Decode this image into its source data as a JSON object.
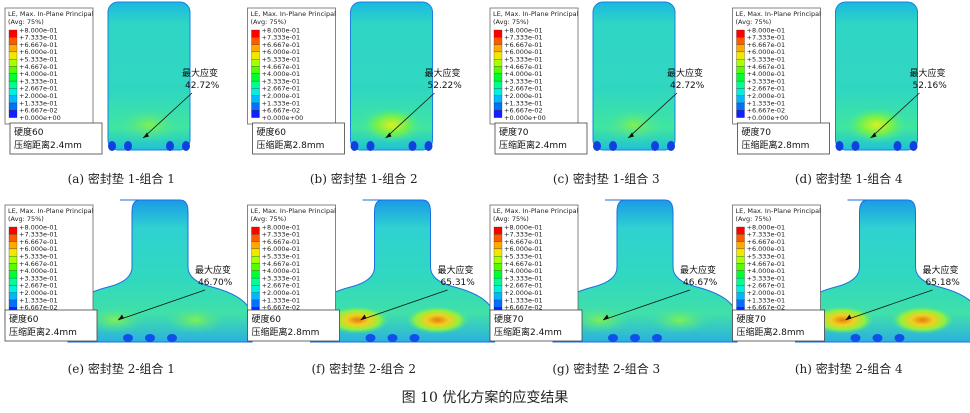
{
  "legend": {
    "title": "LE, Max. In-Plane Principal",
    "subtitle": "(Avg: 75%)",
    "values": [
      "+8.000e-01",
      "+7.333e-01",
      "+6.667e-01",
      "+6.000e-01",
      "+5.333e-01",
      "+4.667e-01",
      "+4.000e-01",
      "+3.333e-01",
      "+2.667e-01",
      "+2.000e-01",
      "+1.333e-01",
      "+6.667e-02",
      "+0.000e+00"
    ]
  },
  "panels": [
    {
      "caption": "(a)  密封垫 1-组合 1",
      "hardness": "硬度60",
      "distance": "压缩距离2.4mm",
      "max_label": "最大应变",
      "max_value": "42.72%"
    },
    {
      "caption": "(b)  密封垫 1-组合 2",
      "hardness": "硬度60",
      "distance": "压缩距离2.8mm",
      "max_label": "最大应变",
      "max_value": "52.22%"
    },
    {
      "caption": "(c)  密封垫 1-组合 3",
      "hardness": "硬度70",
      "distance": "压缩距离2.4mm",
      "max_label": "最大应变",
      "max_value": "42.72%"
    },
    {
      "caption": "(d)  密封垫 1-组合 4",
      "hardness": "硬度70",
      "distance": "压缩距离2.8mm",
      "max_label": "最大应变",
      "max_value": "52.16%"
    },
    {
      "caption": "(e)  密封垫 2-组合 1",
      "hardness": "硬度60",
      "distance": "压缩距离2.4mm",
      "max_label": "最大应变",
      "max_value": "46.70%"
    },
    {
      "caption": "(f)  密封垫 2-组合 2",
      "hardness": "硬度60",
      "distance": "压缩距离2.8mm",
      "max_label": "最大应变",
      "max_value": "65.31%"
    },
    {
      "caption": "(g)  密封垫 2-组合 3",
      "hardness": "硬度70",
      "distance": "压缩距离2.4mm",
      "max_label": "最大应变",
      "max_value": "46.67%"
    },
    {
      "caption": "(h)  密封垫 2-组合 4",
      "hardness": "硬度70",
      "distance": "压缩距离2.8mm",
      "max_label": "最大应变",
      "max_value": "65.18%"
    }
  ],
  "figure_caption": "图 10   优化方案的应变结果"
}
